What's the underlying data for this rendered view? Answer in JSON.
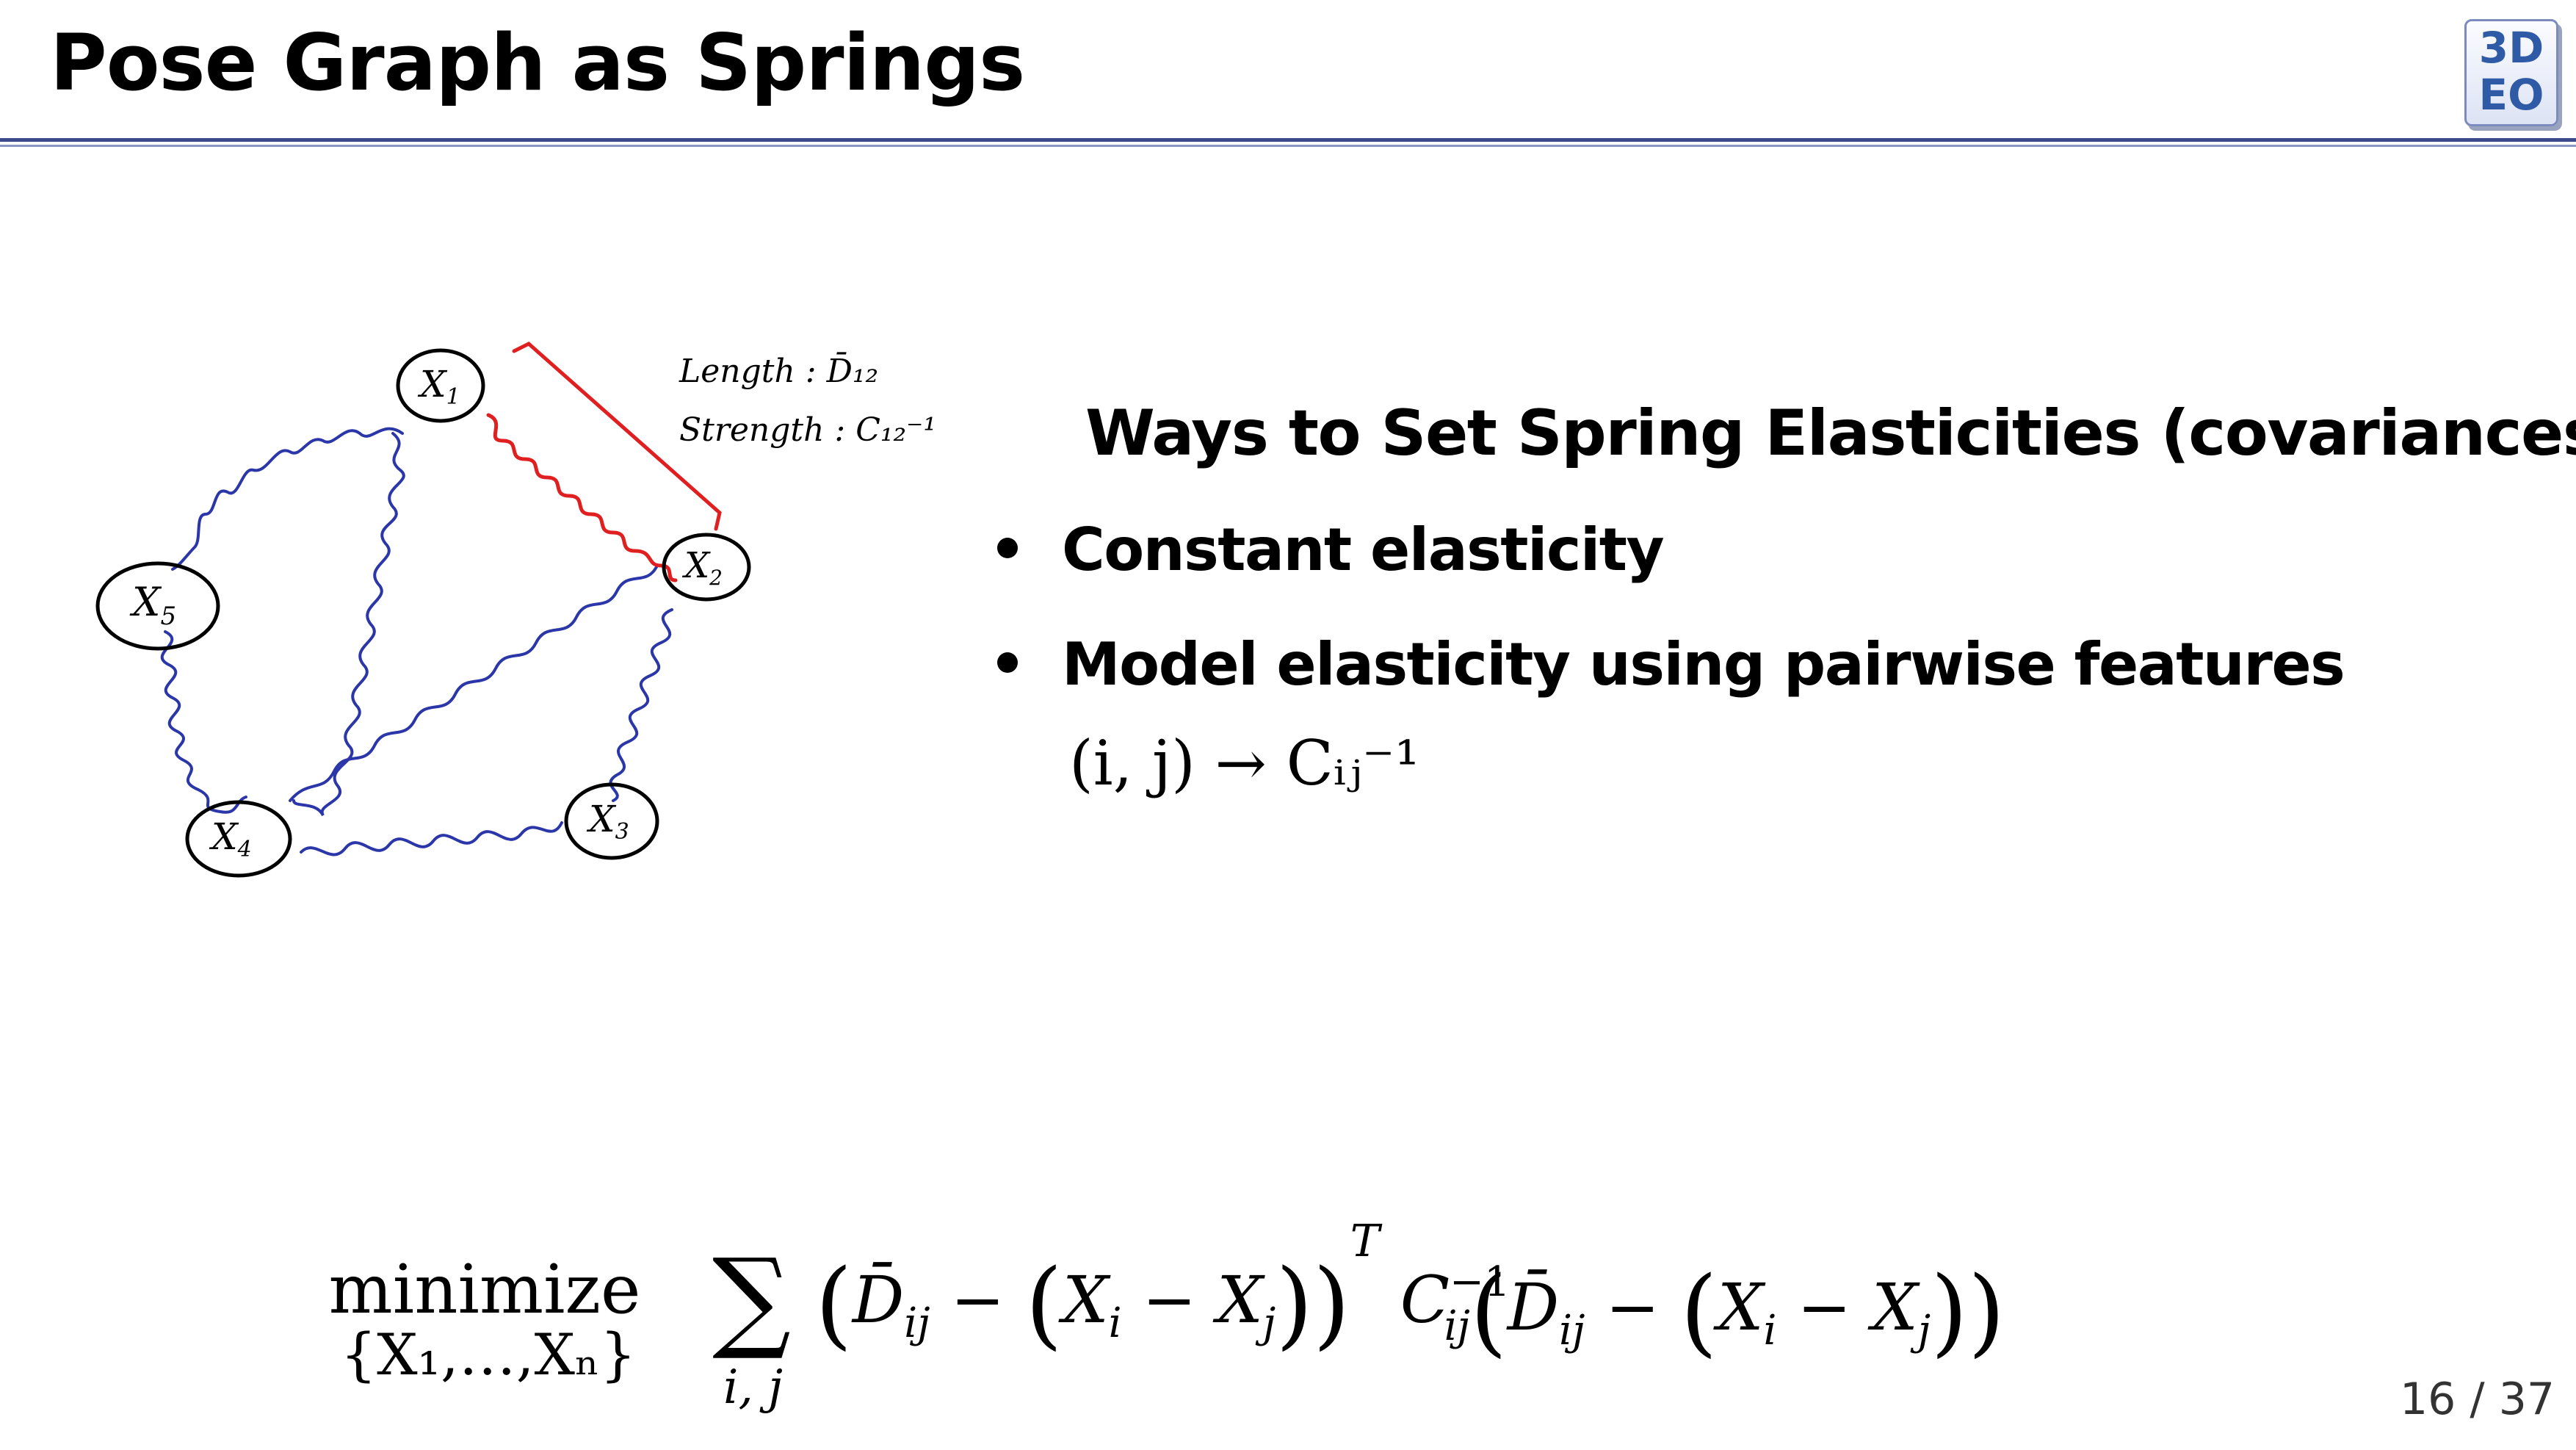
{
  "slide": {
    "title": "Pose Graph as Springs",
    "logo": {
      "top": "3D",
      "bottom": "EO"
    },
    "page": "16 / 37"
  },
  "diagram": {
    "nodes": [
      "X1",
      "X2",
      "X3",
      "X4",
      "X5"
    ],
    "annotation_length": "Length : D̄₁₂",
    "annotation_strength": "Strength : C₁₂⁻¹"
  },
  "content": {
    "heading": "Ways to Set Spring Elasticities (covariances)",
    "bullets": [
      "Constant elasticity",
      "Model elasticity using pairwise features"
    ],
    "mapping": "(i, j) → Cᵢⱼ⁻¹"
  },
  "formula": {
    "operator": "minimize",
    "operator_sub": "{X₁,…,Xₙ}",
    "sum_sub": "i, j",
    "body": "∑ (D̄ᵢⱼ − (Xᵢ − Xⱼ))ᵀ Cᵢⱼ⁻¹ (D̄ᵢⱼ − (Xᵢ − Xⱼ))"
  },
  "colors": {
    "spring_blue": "#2b37a8",
    "spring_red": "#e02020",
    "rule": "#3a4a8c"
  }
}
